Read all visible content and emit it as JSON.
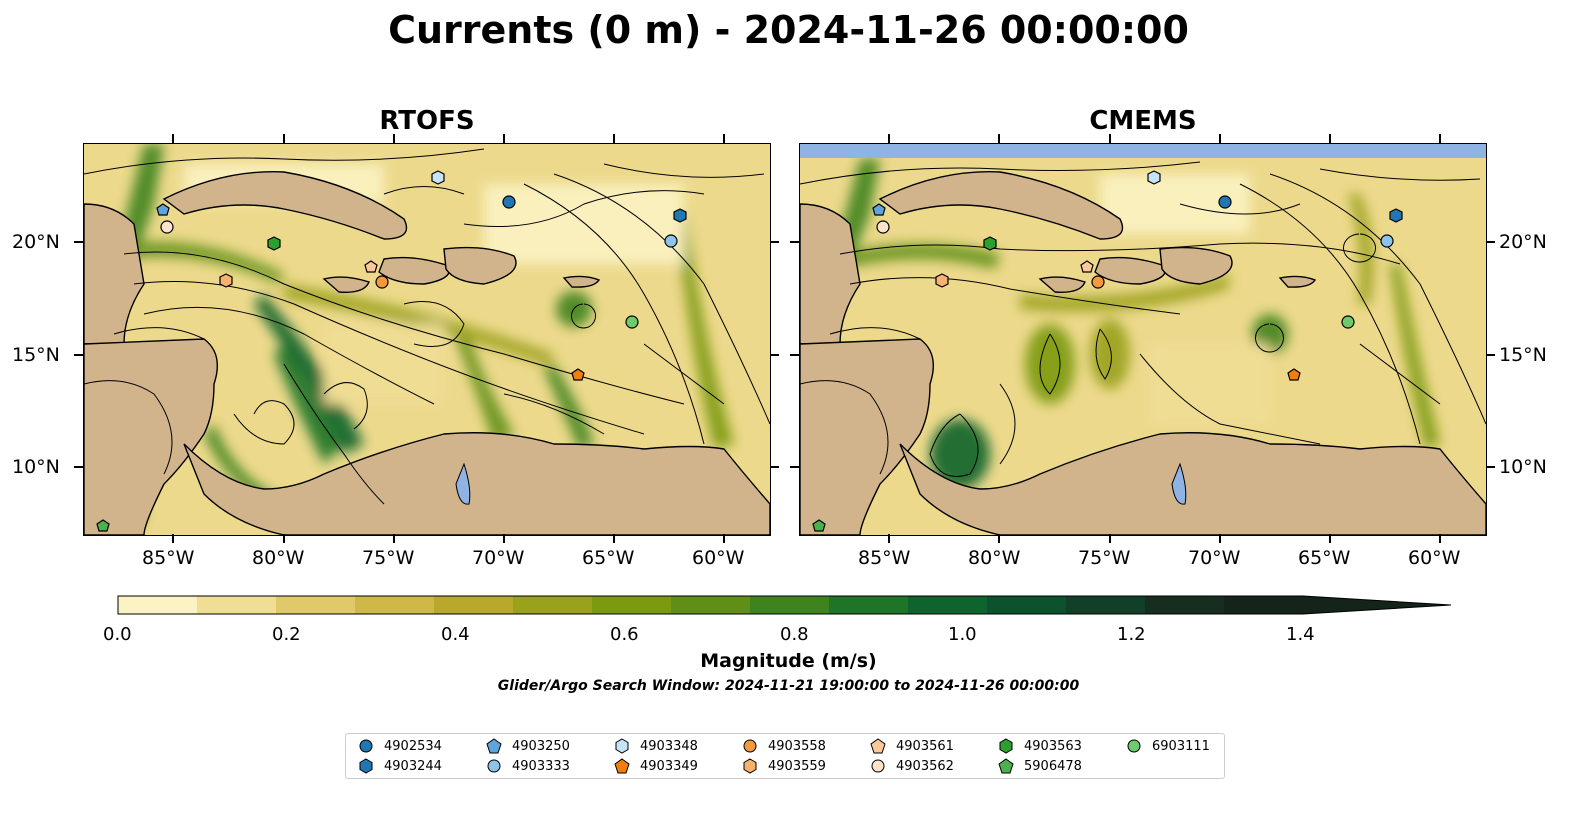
{
  "title": "Currents (0 m) - 2024-11-26 00:00:00",
  "panels": [
    {
      "title": "RTOFS"
    },
    {
      "title": "CMEMS"
    }
  ],
  "axes": {
    "lon_ticks": [
      "85°W",
      "80°W",
      "75°W",
      "70°W",
      "65°W",
      "60°W"
    ],
    "lat_ticks": [
      "20°N",
      "15°N",
      "10°N"
    ]
  },
  "colorbar": {
    "label": "Magnitude (m/s)",
    "ticks": [
      "0.0",
      "0.2",
      "0.4",
      "0.6",
      "0.8",
      "1.0",
      "1.2",
      "1.4"
    ],
    "colors": [
      "#fbf3c3",
      "#f0de95",
      "#e0c96a",
      "#cfb748",
      "#b8a92c",
      "#9aa11a",
      "#7c9a10",
      "#5f8f16",
      "#3f831f",
      "#1f7427",
      "#0f632c",
      "#0c522c",
      "#123f27",
      "#172d1f",
      "#14241a"
    ]
  },
  "search_window": "Glider/Argo Search Window: 2024-11-21 19:00:00 to 2024-11-26 00:00:00",
  "legend": [
    {
      "id": "4902534",
      "marker": "circle",
      "color": "#1f77b4"
    },
    {
      "id": "4903244",
      "marker": "hexagon",
      "color": "#1f77b4"
    },
    {
      "id": "4903250",
      "marker": "pentagon",
      "color": "#5da5da"
    },
    {
      "id": "4903333",
      "marker": "circle",
      "color": "#8fc4ea"
    },
    {
      "id": "4903348",
      "marker": "hexagon",
      "color": "#c6e4f7"
    },
    {
      "id": "4903349",
      "marker": "pentagon",
      "color": "#f07f0e"
    },
    {
      "id": "4903558",
      "marker": "circle",
      "color": "#f5993e"
    },
    {
      "id": "4903559",
      "marker": "hexagon",
      "color": "#f8b26e"
    },
    {
      "id": "4903561",
      "marker": "pentagon",
      "color": "#fbc99a"
    },
    {
      "id": "4903562",
      "marker": "circle",
      "color": "#fde3cb"
    },
    {
      "id": "4903563",
      "marker": "hexagon",
      "color": "#2ca02c"
    },
    {
      "id": "5906478",
      "marker": "pentagon",
      "color": "#4cb04c"
    },
    {
      "id": "6903111",
      "marker": "circle",
      "color": "#6dca6d"
    }
  ],
  "colors": {
    "land": "#d1b48c",
    "water_low": "#fbf3c3",
    "lake": "#8fb4e3",
    "coast": "#000000"
  }
}
